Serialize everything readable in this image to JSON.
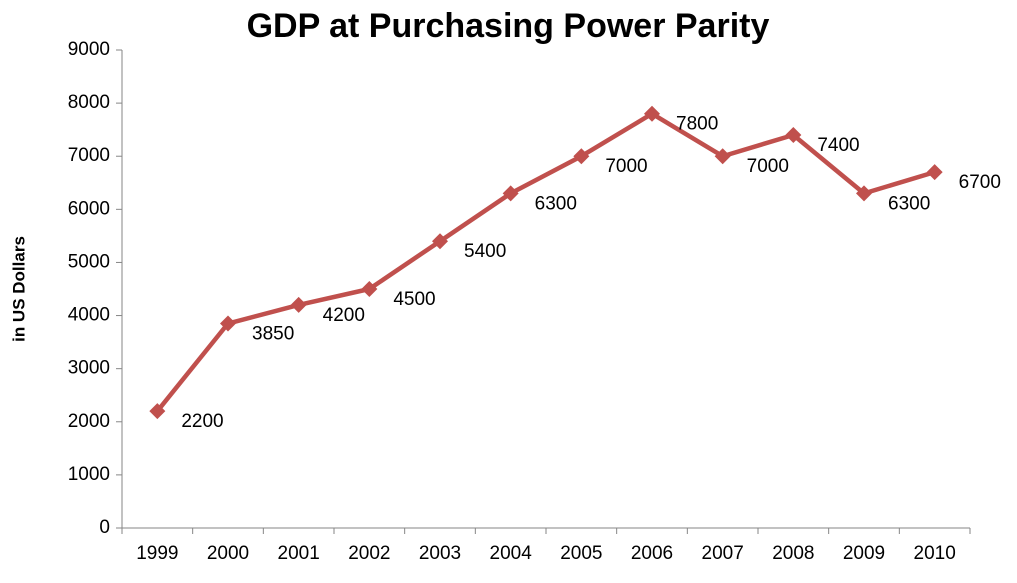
{
  "chart_data": {
    "type": "line",
    "title": "GDP at Purchasing Power Parity",
    "y_label": "in US Dollars",
    "categories": [
      "1999",
      "2000",
      "2001",
      "2002",
      "2003",
      "2004",
      "2005",
      "2006",
      "2007",
      "2008",
      "2009",
      "2010"
    ],
    "series": [
      {
        "name": "GDP",
        "color": "#c0504d",
        "values": [
          2200,
          3850,
          4200,
          4500,
          5400,
          6300,
          7000,
          7800,
          7000,
          7400,
          6300,
          6700
        ]
      }
    ],
    "ylim": [
      0,
      9000
    ],
    "yticks": [
      0,
      1000,
      2000,
      3000,
      4000,
      5000,
      6000,
      7000,
      8000,
      9000
    ],
    "grid": false,
    "data_labels": true
  }
}
